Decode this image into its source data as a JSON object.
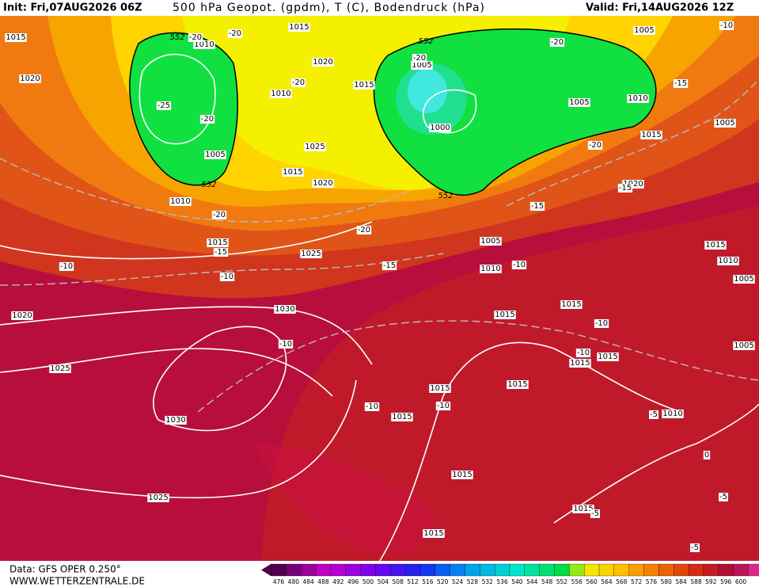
{
  "header": {
    "init": "Init: Fri,07AUG2026 06Z",
    "title": "500 hPa Geopot. (gpdm), T (C), Bodendruck (hPa)",
    "valid": "Valid: Fri,14AUG2026 12Z"
  },
  "footer": {
    "source": "Data: GFS OPER 0.250°",
    "website": "WWW.WETTERZENTRALE.DE"
  },
  "scale": {
    "labels": [
      476,
      480,
      484,
      488,
      492,
      496,
      500,
      504,
      508,
      512,
      516,
      520,
      524,
      528,
      532,
      536,
      540,
      544,
      548,
      552,
      556,
      560,
      564,
      568,
      572,
      576,
      580,
      584,
      588,
      592,
      596,
      600
    ]
  },
  "isobar_labels": [
    1015,
    1020,
    1010,
    1015,
    1020,
    1010,
    1015,
    1025,
    1015,
    1020,
    1010,
    1005,
    1015,
    1025,
    1030,
    1020,
    1025,
    1030,
    1025,
    1005,
    1000,
    1005,
    1010,
    1005,
    1015,
    1005,
    1020,
    1005,
    1010,
    1015,
    1010,
    1015,
    1015,
    1015,
    1015,
    1015,
    1015,
    1015,
    1010,
    1015,
    1015,
    1015,
    1005,
    1005
  ],
  "thickness_labels": [
    552,
    552,
    552,
    552
  ],
  "temperature_labels": [
    -20,
    -20,
    -20,
    -20,
    -25,
    -20,
    -20,
    -15,
    -20,
    -15,
    -15,
    -20,
    -15,
    -10,
    -10,
    -10,
    -15,
    -20,
    -10,
    -10,
    -10,
    -10,
    -10,
    -5,
    0,
    -5,
    -5,
    -5,
    -10
  ]
}
